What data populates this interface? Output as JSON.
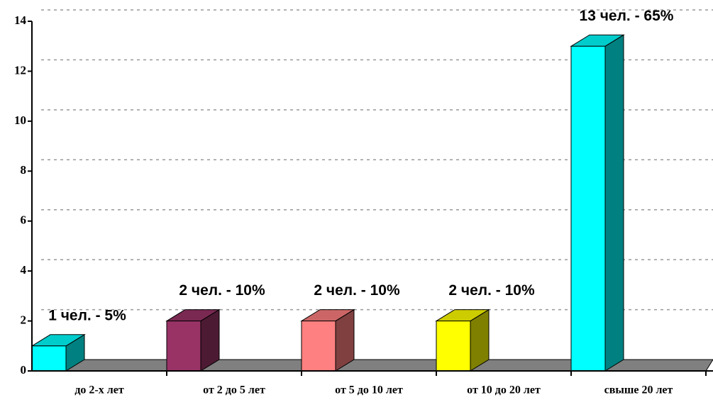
{
  "chart_data": {
    "type": "bar3d",
    "categories": [
      "до  2-х лет",
      "от 2 до 5 лет",
      "от 5 до 10 лет",
      "от 10 до 20 лет",
      "свыше 20 лет"
    ],
    "values": [
      1,
      2,
      2,
      2,
      13
    ],
    "value_labels": [
      "1 чел. - 5%",
      "2 чел. - 10%",
      "2 чел. - 10%",
      "2 чел. - 10%",
      "13 чел. -  65%"
    ],
    "colors": [
      "#00ffff",
      "#993366",
      "#ff8080",
      "#ffff00",
      "#00ffff"
    ],
    "ylim": [
      0,
      14
    ],
    "yticks": [
      0,
      2,
      4,
      6,
      8,
      10,
      12,
      14
    ],
    "grid": true
  }
}
